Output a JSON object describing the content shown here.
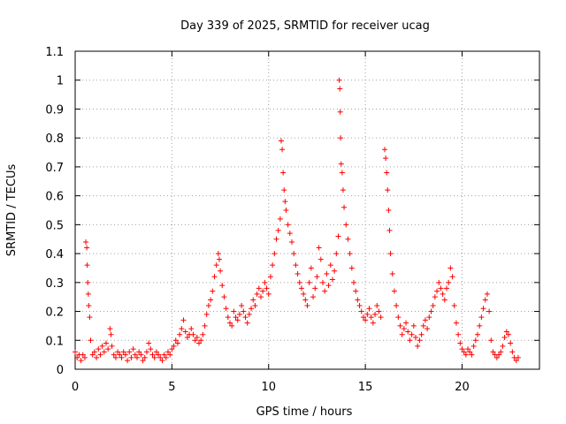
{
  "chart_data": {
    "type": "scatter",
    "title": "Day 339 of 2025, SRMTID for receiver ucag",
    "xlabel": "GPS time / hours",
    "ylabel": "SRMTID / TECUs",
    "xlim": [
      0,
      24
    ],
    "ylim": [
      0,
      1.1
    ],
    "xticks": [
      0,
      5,
      10,
      15,
      20
    ],
    "xtick_labels": [
      "0",
      "5",
      "10",
      "15",
      "20"
    ],
    "yticks": [
      0,
      0.1,
      0.2,
      0.3,
      0.4,
      0.5,
      0.6,
      0.7,
      0.8,
      0.9,
      1.0,
      1.1
    ],
    "ytick_labels": [
      "0",
      "0.1",
      "0.2",
      "0.3",
      "0.4",
      "0.5",
      "0.6",
      "0.7",
      "0.8",
      "0.9",
      "1",
      "1.1"
    ],
    "grid": true,
    "marker": "+",
    "color": "#ff0000",
    "series": [
      {
        "name": "SRMTID",
        "points": [
          [
            0.0,
            0.06
          ],
          [
            0.1,
            0.04
          ],
          [
            0.2,
            0.05
          ],
          [
            0.3,
            0.03
          ],
          [
            0.4,
            0.05
          ],
          [
            0.5,
            0.04
          ],
          [
            0.55,
            0.44
          ],
          [
            0.6,
            0.42
          ],
          [
            0.62,
            0.36
          ],
          [
            0.65,
            0.3
          ],
          [
            0.68,
            0.26
          ],
          [
            0.7,
            0.22
          ],
          [
            0.75,
            0.18
          ],
          [
            0.8,
            0.1
          ],
          [
            0.9,
            0.05
          ],
          [
            1.0,
            0.06
          ],
          [
            1.1,
            0.04
          ],
          [
            1.2,
            0.07
          ],
          [
            1.3,
            0.05
          ],
          [
            1.4,
            0.08
          ],
          [
            1.5,
            0.06
          ],
          [
            1.6,
            0.09
          ],
          [
            1.7,
            0.07
          ],
          [
            1.8,
            0.14
          ],
          [
            1.85,
            0.12
          ],
          [
            1.9,
            0.08
          ],
          [
            2.0,
            0.05
          ],
          [
            2.1,
            0.04
          ],
          [
            2.2,
            0.06
          ],
          [
            2.3,
            0.05
          ],
          [
            2.4,
            0.04
          ],
          [
            2.5,
            0.06
          ],
          [
            2.6,
            0.05
          ],
          [
            2.7,
            0.03
          ],
          [
            2.8,
            0.06
          ],
          [
            2.9,
            0.04
          ],
          [
            3.0,
            0.07
          ],
          [
            3.1,
            0.05
          ],
          [
            3.2,
            0.04
          ],
          [
            3.3,
            0.06
          ],
          [
            3.4,
            0.05
          ],
          [
            3.5,
            0.03
          ],
          [
            3.6,
            0.04
          ],
          [
            3.7,
            0.06
          ],
          [
            3.8,
            0.09
          ],
          [
            3.9,
            0.07
          ],
          [
            4.0,
            0.05
          ],
          [
            4.1,
            0.04
          ],
          [
            4.2,
            0.06
          ],
          [
            4.3,
            0.05
          ],
          [
            4.4,
            0.04
          ],
          [
            4.5,
            0.03
          ],
          [
            4.6,
            0.05
          ],
          [
            4.7,
            0.04
          ],
          [
            4.8,
            0.06
          ],
          [
            4.9,
            0.05
          ],
          [
            5.0,
            0.07
          ],
          [
            5.1,
            0.08
          ],
          [
            5.2,
            0.1
          ],
          [
            5.3,
            0.09
          ],
          [
            5.4,
            0.12
          ],
          [
            5.5,
            0.14
          ],
          [
            5.6,
            0.17
          ],
          [
            5.7,
            0.13
          ],
          [
            5.8,
            0.11
          ],
          [
            5.9,
            0.12
          ],
          [
            6.0,
            0.14
          ],
          [
            6.1,
            0.12
          ],
          [
            6.2,
            0.1
          ],
          [
            6.3,
            0.11
          ],
          [
            6.4,
            0.09
          ],
          [
            6.5,
            0.1
          ],
          [
            6.6,
            0.12
          ],
          [
            6.7,
            0.15
          ],
          [
            6.8,
            0.19
          ],
          [
            6.9,
            0.22
          ],
          [
            7.0,
            0.24
          ],
          [
            7.1,
            0.27
          ],
          [
            7.2,
            0.32
          ],
          [
            7.3,
            0.36
          ],
          [
            7.4,
            0.4
          ],
          [
            7.45,
            0.38
          ],
          [
            7.5,
            0.34
          ],
          [
            7.6,
            0.29
          ],
          [
            7.7,
            0.25
          ],
          [
            7.8,
            0.21
          ],
          [
            7.9,
            0.18
          ],
          [
            8.0,
            0.16
          ],
          [
            8.1,
            0.15
          ],
          [
            8.2,
            0.2
          ],
          [
            8.3,
            0.18
          ],
          [
            8.4,
            0.17
          ],
          [
            8.5,
            0.19
          ],
          [
            8.6,
            0.22
          ],
          [
            8.7,
            0.2
          ],
          [
            8.8,
            0.18
          ],
          [
            8.9,
            0.16
          ],
          [
            9.0,
            0.19
          ],
          [
            9.1,
            0.21
          ],
          [
            9.2,
            0.24
          ],
          [
            9.3,
            0.22
          ],
          [
            9.4,
            0.26
          ],
          [
            9.5,
            0.28
          ],
          [
            9.6,
            0.25
          ],
          [
            9.7,
            0.27
          ],
          [
            9.8,
            0.3
          ],
          [
            9.9,
            0.28
          ],
          [
            10.0,
            0.26
          ],
          [
            10.1,
            0.32
          ],
          [
            10.2,
            0.36
          ],
          [
            10.3,
            0.4
          ],
          [
            10.4,
            0.45
          ],
          [
            10.5,
            0.48
          ],
          [
            10.6,
            0.52
          ],
          [
            10.65,
            0.79
          ],
          [
            10.7,
            0.76
          ],
          [
            10.75,
            0.68
          ],
          [
            10.8,
            0.62
          ],
          [
            10.85,
            0.58
          ],
          [
            10.9,
            0.55
          ],
          [
            11.0,
            0.5
          ],
          [
            11.1,
            0.47
          ],
          [
            11.2,
            0.44
          ],
          [
            11.3,
            0.4
          ],
          [
            11.4,
            0.36
          ],
          [
            11.5,
            0.33
          ],
          [
            11.6,
            0.3
          ],
          [
            11.7,
            0.28
          ],
          [
            11.8,
            0.26
          ],
          [
            11.9,
            0.24
          ],
          [
            12.0,
            0.22
          ],
          [
            12.1,
            0.3
          ],
          [
            12.2,
            0.35
          ],
          [
            12.3,
            0.25
          ],
          [
            12.4,
            0.28
          ],
          [
            12.5,
            0.32
          ],
          [
            12.6,
            0.42
          ],
          [
            12.7,
            0.38
          ],
          [
            12.8,
            0.3
          ],
          [
            12.9,
            0.27
          ],
          [
            13.0,
            0.33
          ],
          [
            13.1,
            0.29
          ],
          [
            13.2,
            0.36
          ],
          [
            13.3,
            0.31
          ],
          [
            13.4,
            0.34
          ],
          [
            13.5,
            0.4
          ],
          [
            13.6,
            0.46
          ],
          [
            13.65,
            1.0
          ],
          [
            13.68,
            0.97
          ],
          [
            13.7,
            0.89
          ],
          [
            13.72,
            0.8
          ],
          [
            13.75,
            0.71
          ],
          [
            13.8,
            0.68
          ],
          [
            13.85,
            0.62
          ],
          [
            13.9,
            0.56
          ],
          [
            14.0,
            0.5
          ],
          [
            14.1,
            0.45
          ],
          [
            14.2,
            0.4
          ],
          [
            14.3,
            0.35
          ],
          [
            14.4,
            0.3
          ],
          [
            14.5,
            0.27
          ],
          [
            14.6,
            0.24
          ],
          [
            14.7,
            0.22
          ],
          [
            14.8,
            0.2
          ],
          [
            14.9,
            0.18
          ],
          [
            15.0,
            0.17
          ],
          [
            15.1,
            0.19
          ],
          [
            15.2,
            0.21
          ],
          [
            15.3,
            0.18
          ],
          [
            15.4,
            0.16
          ],
          [
            15.5,
            0.19
          ],
          [
            15.6,
            0.22
          ],
          [
            15.7,
            0.2
          ],
          [
            15.8,
            0.18
          ],
          [
            16.0,
            0.76
          ],
          [
            16.05,
            0.73
          ],
          [
            16.1,
            0.68
          ],
          [
            16.15,
            0.62
          ],
          [
            16.2,
            0.55
          ],
          [
            16.25,
            0.48
          ],
          [
            16.3,
            0.4
          ],
          [
            16.4,
            0.33
          ],
          [
            16.5,
            0.27
          ],
          [
            16.6,
            0.22
          ],
          [
            16.7,
            0.18
          ],
          [
            16.8,
            0.15
          ],
          [
            16.9,
            0.12
          ],
          [
            17.0,
            0.14
          ],
          [
            17.1,
            0.16
          ],
          [
            17.2,
            0.13
          ],
          [
            17.3,
            0.1
          ],
          [
            17.4,
            0.12
          ],
          [
            17.5,
            0.15
          ],
          [
            17.6,
            0.11
          ],
          [
            17.7,
            0.08
          ],
          [
            17.8,
            0.1
          ],
          [
            17.9,
            0.12
          ],
          [
            18.0,
            0.15
          ],
          [
            18.1,
            0.17
          ],
          [
            18.2,
            0.14
          ],
          [
            18.3,
            0.18
          ],
          [
            18.4,
            0.2
          ],
          [
            18.5,
            0.22
          ],
          [
            18.6,
            0.25
          ],
          [
            18.7,
            0.27
          ],
          [
            18.8,
            0.3
          ],
          [
            18.9,
            0.28
          ],
          [
            19.0,
            0.26
          ],
          [
            19.1,
            0.24
          ],
          [
            19.2,
            0.28
          ],
          [
            19.3,
            0.3
          ],
          [
            19.4,
            0.35
          ],
          [
            19.5,
            0.32
          ],
          [
            19.6,
            0.22
          ],
          [
            19.7,
            0.16
          ],
          [
            19.8,
            0.12
          ],
          [
            19.9,
            0.09
          ],
          [
            20.0,
            0.07
          ],
          [
            20.1,
            0.06
          ],
          [
            20.2,
            0.05
          ],
          [
            20.3,
            0.07
          ],
          [
            20.4,
            0.06
          ],
          [
            20.5,
            0.05
          ],
          [
            20.6,
            0.08
          ],
          [
            20.7,
            0.1
          ],
          [
            20.8,
            0.12
          ],
          [
            20.9,
            0.15
          ],
          [
            21.0,
            0.18
          ],
          [
            21.1,
            0.21
          ],
          [
            21.2,
            0.24
          ],
          [
            21.3,
            0.26
          ],
          [
            21.4,
            0.2
          ],
          [
            21.5,
            0.1
          ],
          [
            21.6,
            0.06
          ],
          [
            21.7,
            0.05
          ],
          [
            21.8,
            0.04
          ],
          [
            21.9,
            0.05
          ],
          [
            22.0,
            0.06
          ],
          [
            22.1,
            0.08
          ],
          [
            22.2,
            0.11
          ],
          [
            22.3,
            0.13
          ],
          [
            22.4,
            0.12
          ],
          [
            22.5,
            0.09
          ],
          [
            22.6,
            0.06
          ],
          [
            22.7,
            0.04
          ],
          [
            22.8,
            0.03
          ],
          [
            22.9,
            0.04
          ]
        ]
      }
    ]
  }
}
